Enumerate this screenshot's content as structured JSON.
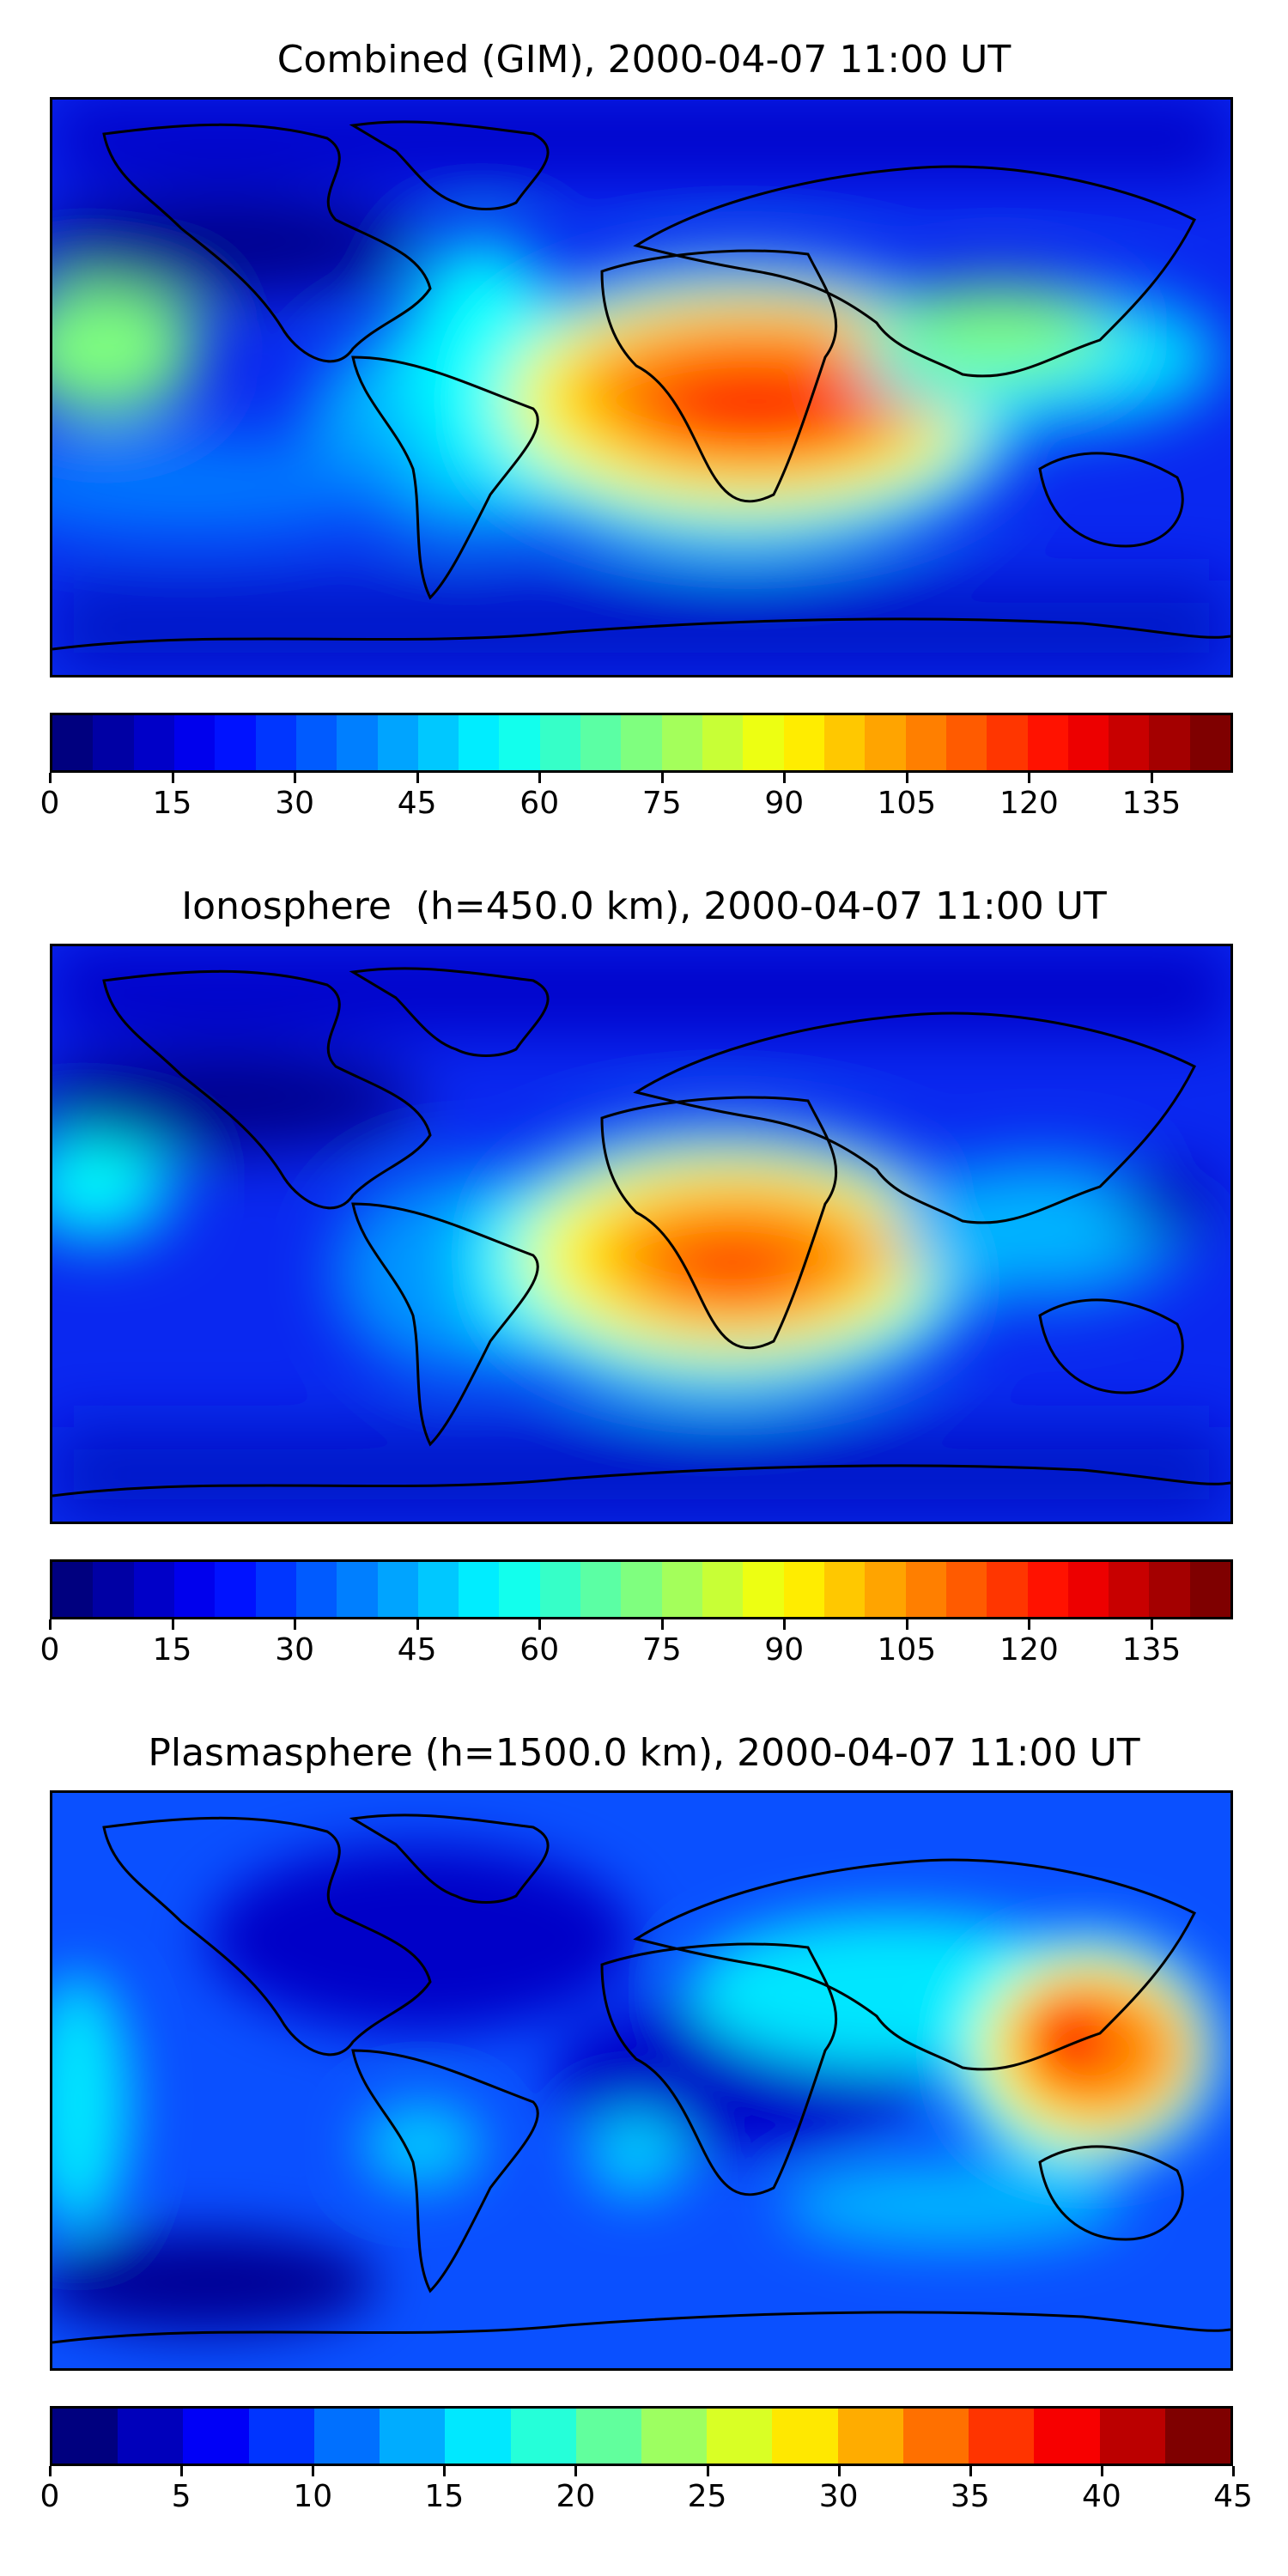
{
  "panels": [
    {
      "title": "Combined (GIM), 2000-04-07 11:00 UT",
      "colorbar": {
        "min": 0,
        "max": 145,
        "levels": 29,
        "ticks": [
          0,
          15,
          30,
          45,
          60,
          75,
          90,
          105,
          120,
          135
        ]
      }
    },
    {
      "title": "Ionosphere  (h=450.0 km), 2000-04-07 11:00 UT",
      "colorbar": {
        "min": 0,
        "max": 145,
        "levels": 29,
        "ticks": [
          0,
          15,
          30,
          45,
          60,
          75,
          90,
          105,
          120,
          135
        ]
      }
    },
    {
      "title": "Plasmasphere (h=1500.0 km), 2000-04-07 11:00 UT",
      "colorbar": {
        "min": 0,
        "max": 45,
        "levels": 18,
        "ticks": [
          0,
          5,
          10,
          15,
          20,
          25,
          30,
          35,
          40,
          45
        ]
      }
    }
  ],
  "colormap": "jet",
  "colors": {
    "jet": [
      "#00007f",
      "#0000ff",
      "#007fff",
      "#00ffff",
      "#7fff7f",
      "#ffff00",
      "#ff7f00",
      "#ff0000",
      "#7f0000"
    ],
    "coastline": "#000000"
  }
}
